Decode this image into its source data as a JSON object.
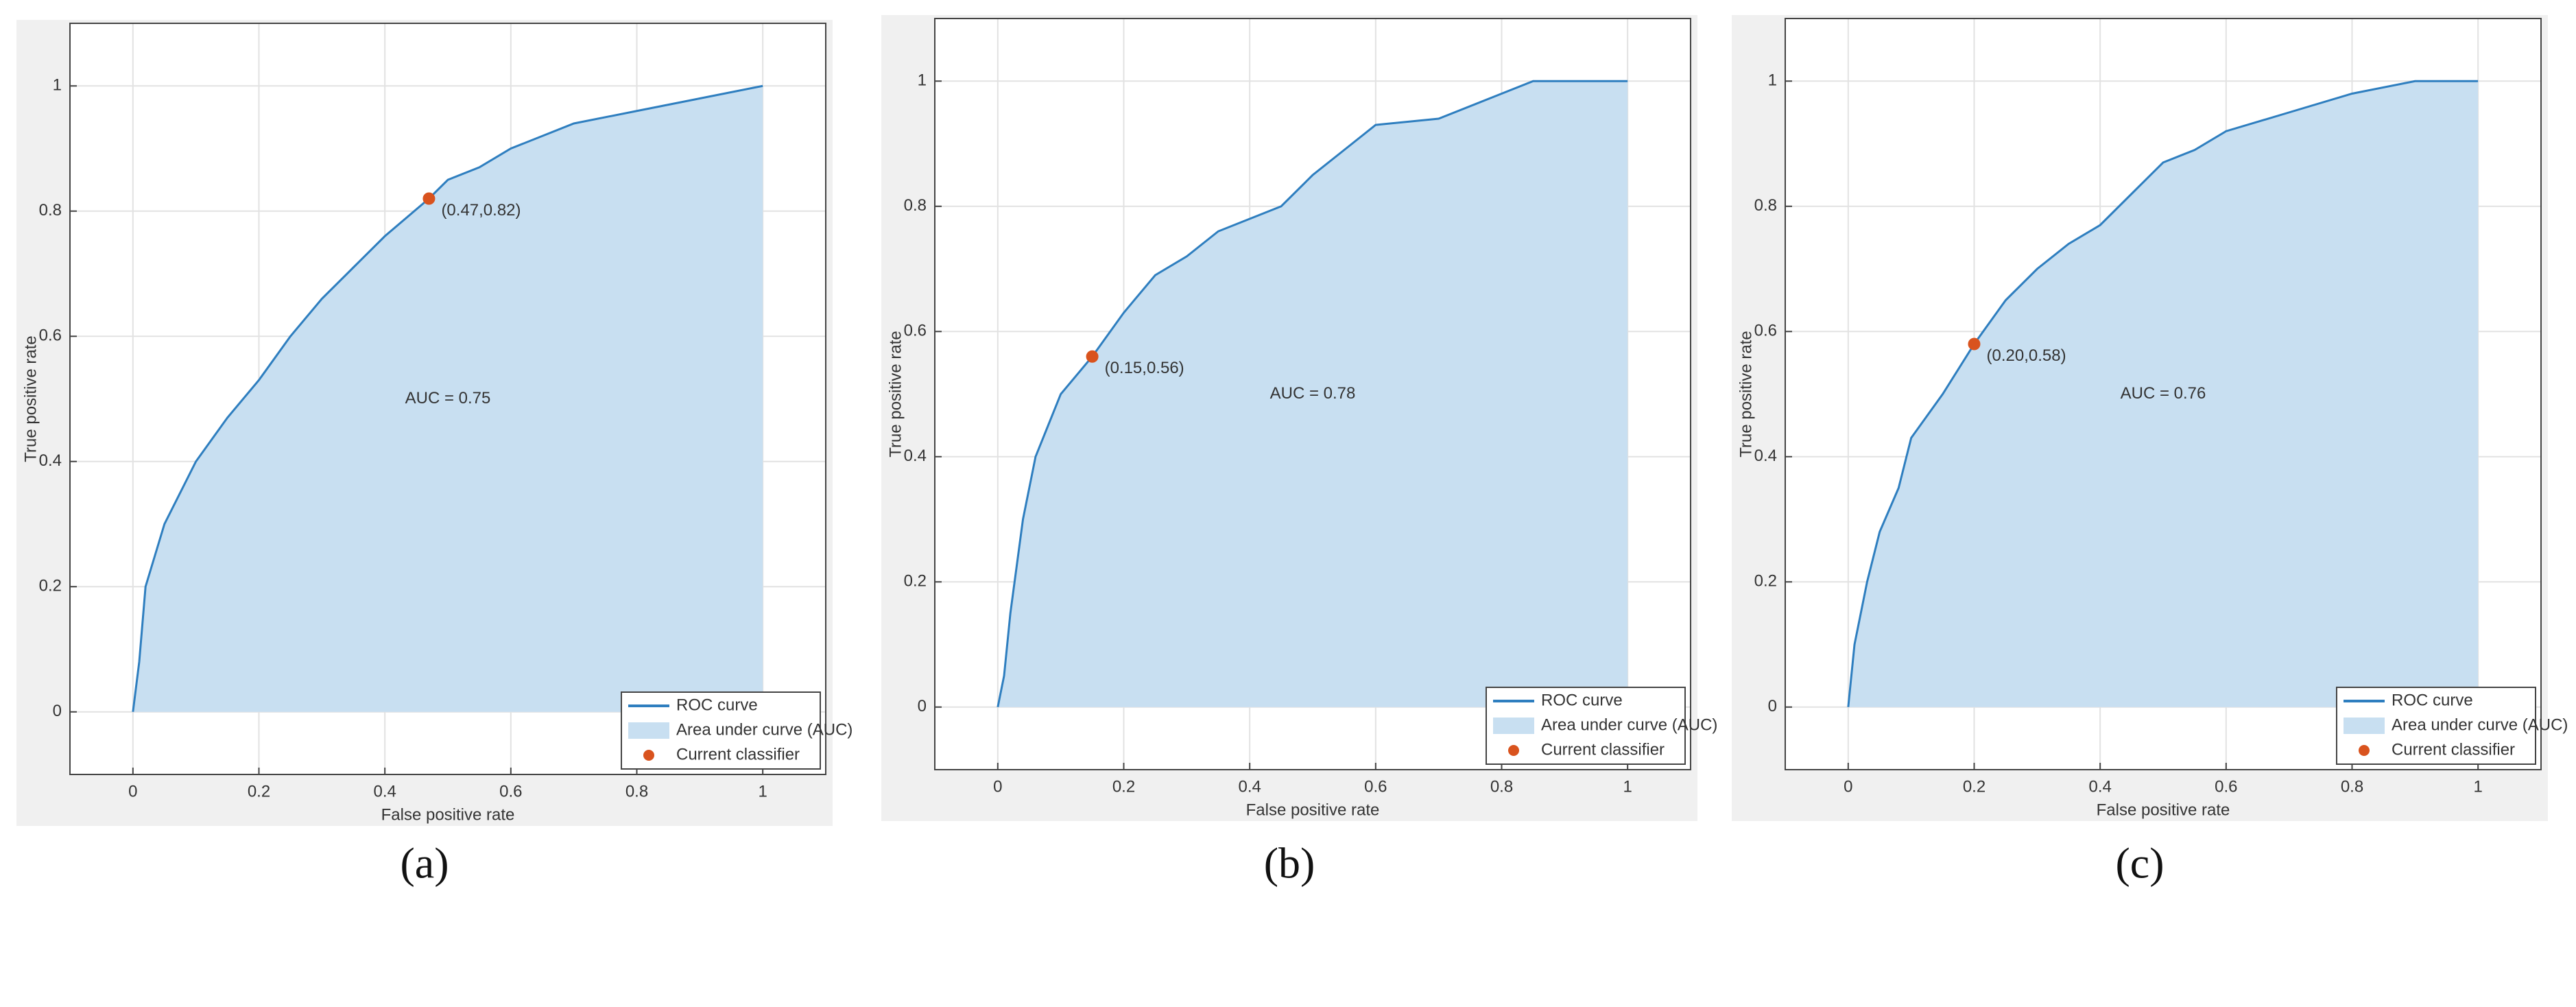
{
  "chart_data": [
    {
      "type": "roc",
      "caption": "(a)",
      "xlabel": "False positive rate",
      "ylabel": "True positive rate",
      "xlim": [
        -0.1,
        1.1
      ],
      "ylim": [
        -0.1,
        1.1
      ],
      "xticks": [
        0,
        0.2,
        0.4,
        0.6,
        0.8,
        1
      ],
      "yticks": [
        0,
        0.2,
        0.4,
        0.6,
        0.8,
        1
      ],
      "grid": true,
      "legend": "lower right",
      "series": [
        {
          "name": "ROC curve",
          "color": "#2e7ebf",
          "x": [
            0,
            0.01,
            0.02,
            0.05,
            0.1,
            0.15,
            0.2,
            0.25,
            0.3,
            0.35,
            0.4,
            0.47,
            0.5,
            0.55,
            0.6,
            0.7,
            0.8,
            0.9,
            1
          ],
          "values": [
            0,
            0.08,
            0.2,
            0.3,
            0.4,
            0.47,
            0.53,
            0.6,
            0.66,
            0.71,
            0.76,
            0.82,
            0.85,
            0.87,
            0.9,
            0.94,
            0.96,
            0.98,
            1
          ]
        }
      ],
      "area": {
        "name": "Area under curve (AUC)",
        "color": "#c8dff1"
      },
      "point": {
        "name": "Current classifier",
        "color": "#d9531e",
        "x": 0.47,
        "y": 0.82,
        "label": "(0.47,0.82)"
      },
      "annotation": "AUC = 0.75"
    },
    {
      "type": "roc",
      "caption": "(b)",
      "xlabel": "False positive rate",
      "ylabel": "True positive rate",
      "xlim": [
        -0.1,
        1.1
      ],
      "ylim": [
        -0.1,
        1.1
      ],
      "xticks": [
        0,
        0.2,
        0.4,
        0.6,
        0.8,
        1
      ],
      "yticks": [
        0,
        0.2,
        0.4,
        0.6,
        0.8,
        1
      ],
      "grid": true,
      "legend": "lower right",
      "series": [
        {
          "name": "ROC curve",
          "color": "#2e7ebf",
          "x": [
            0,
            0.01,
            0.02,
            0.04,
            0.06,
            0.1,
            0.15,
            0.2,
            0.25,
            0.3,
            0.35,
            0.4,
            0.45,
            0.5,
            0.55,
            0.6,
            0.7,
            0.8,
            0.85,
            1
          ],
          "values": [
            0,
            0.05,
            0.15,
            0.3,
            0.4,
            0.5,
            0.56,
            0.63,
            0.69,
            0.72,
            0.76,
            0.78,
            0.8,
            0.85,
            0.89,
            0.93,
            0.94,
            0.98,
            1,
            1
          ]
        }
      ],
      "area": {
        "name": "Area under curve (AUC)",
        "color": "#c8dff1"
      },
      "point": {
        "name": "Current classifier",
        "color": "#d9531e",
        "x": 0.15,
        "y": 0.56,
        "label": "(0.15,0.56)"
      },
      "annotation": "AUC = 0.78"
    },
    {
      "type": "roc",
      "caption": "(c)",
      "xlabel": "False positive rate",
      "ylabel": "True positive rate",
      "xlim": [
        -0.1,
        1.1
      ],
      "ylim": [
        -0.1,
        1.1
      ],
      "xticks": [
        0,
        0.2,
        0.4,
        0.6,
        0.8,
        1
      ],
      "yticks": [
        0,
        0.2,
        0.4,
        0.6,
        0.8,
        1
      ],
      "grid": true,
      "legend": "lower right",
      "series": [
        {
          "name": "ROC curve",
          "color": "#2e7ebf",
          "x": [
            0,
            0.01,
            0.03,
            0.05,
            0.08,
            0.1,
            0.15,
            0.2,
            0.25,
            0.3,
            0.35,
            0.4,
            0.45,
            0.5,
            0.55,
            0.6,
            0.7,
            0.8,
            0.9,
            1
          ],
          "values": [
            0,
            0.1,
            0.2,
            0.28,
            0.35,
            0.43,
            0.5,
            0.58,
            0.65,
            0.7,
            0.74,
            0.77,
            0.82,
            0.87,
            0.89,
            0.92,
            0.95,
            0.98,
            1,
            1
          ]
        }
      ],
      "area": {
        "name": "Area under curve (AUC)",
        "color": "#c8dff1"
      },
      "point": {
        "name": "Current classifier",
        "color": "#d9531e",
        "x": 0.2,
        "y": 0.58,
        "label": "(0.20,0.58)"
      },
      "annotation": "AUC = 0.76"
    }
  ]
}
